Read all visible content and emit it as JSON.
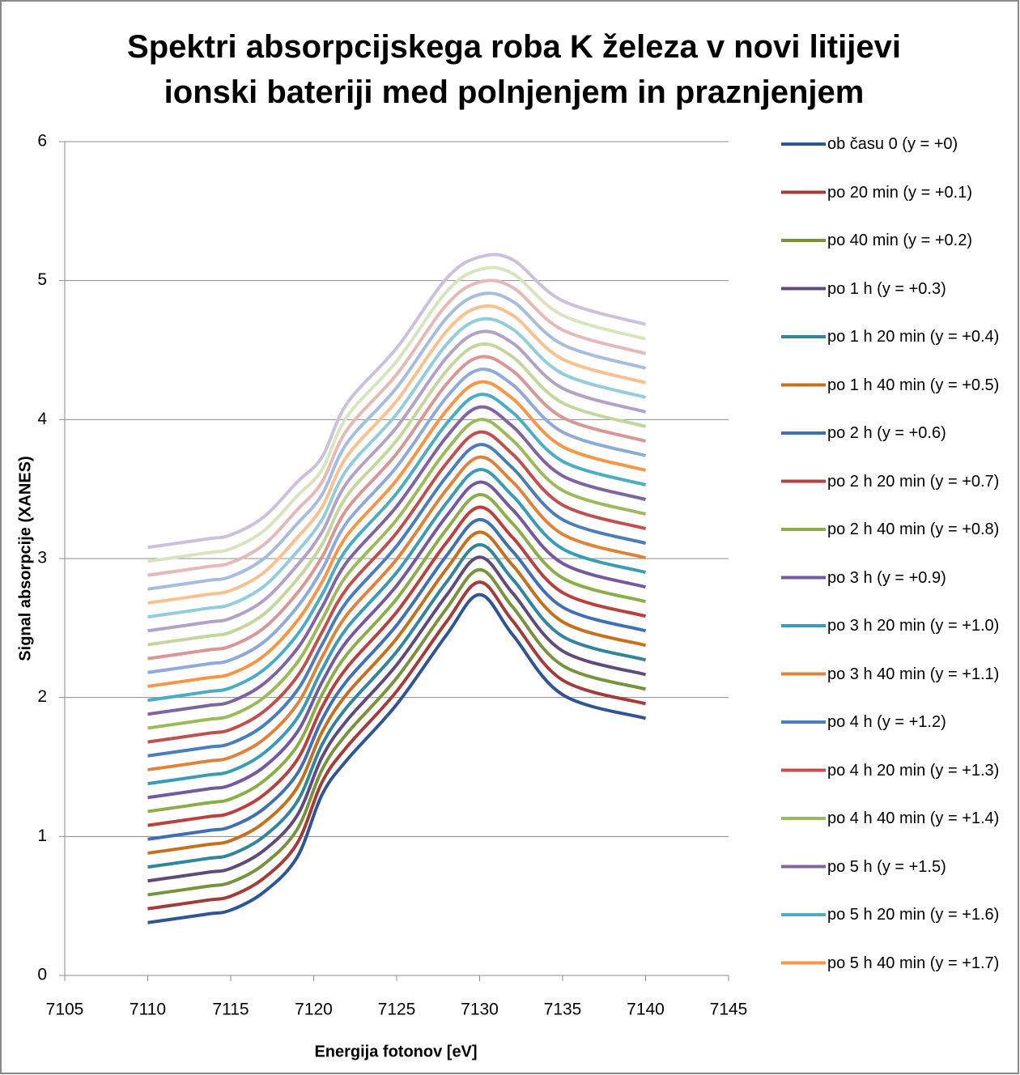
{
  "chart_data": {
    "type": "line",
    "title": "Spektri absorpcijskega roba K železa v novi litijevi ionski bateriji med polnjenjem in praznjenjem",
    "xlabel": "Energija fotonov [eV]",
    "ylabel": "Signal absorpcije (XANES)",
    "x": [
      7110,
      7113.5,
      7115,
      7117,
      7119,
      7120.5,
      7122,
      7125,
      7128,
      7130,
      7132,
      7135,
      7140
    ],
    "xlim": [
      7105,
      7145
    ],
    "xticks": [
      7105,
      7110,
      7115,
      7120,
      7125,
      7130,
      7135,
      7140,
      7145
    ],
    "ylim": [
      0,
      6
    ],
    "yticks": [
      0,
      1,
      2,
      3,
      4,
      5,
      6
    ],
    "grid": true,
    "legend": "right",
    "series": [
      {
        "name": "ob času 0  (y = +0)",
        "color": "#2f5597",
        "values": [
          0.38,
          0.44,
          0.47,
          0.6,
          0.85,
          1.3,
          1.55,
          1.95,
          2.45,
          2.74,
          2.45,
          2.02,
          1.85
        ]
      },
      {
        "name": "po 20 min  (y = +0.1)",
        "color": "#a33b38",
        "values": [
          0.48,
          0.54,
          0.57,
          0.7,
          0.95,
          1.39,
          1.645,
          2.045,
          2.545,
          2.83,
          2.55,
          2.125,
          1.955
        ]
      },
      {
        "name": "po 40 min  (y =  +0.2)",
        "color": "#77933c",
        "values": [
          0.58,
          0.64,
          0.67,
          0.8,
          1.05,
          1.48,
          1.74,
          2.14,
          2.64,
          2.92,
          2.65,
          2.23,
          2.06
        ]
      },
      {
        "name": "po 1 h  (y = +0.3)",
        "color": "#604a7b",
        "values": [
          0.68,
          0.74,
          0.77,
          0.9,
          1.15,
          1.57,
          1.835,
          2.235,
          2.735,
          3.01,
          2.75,
          2.335,
          2.165
        ]
      },
      {
        "name": "po 1 h 20 min  (y = +0.4)",
        "color": "#31859c",
        "values": [
          0.78,
          0.84,
          0.87,
          1.0,
          1.25,
          1.66,
          1.93,
          2.33,
          2.83,
          3.1,
          2.85,
          2.44,
          2.27
        ]
      },
      {
        "name": "po 1 h 40 min  (y = +0.5)",
        "color": "#c5701e",
        "values": [
          0.88,
          0.94,
          0.97,
          1.1,
          1.35,
          1.75,
          2.025,
          2.425,
          2.925,
          3.19,
          2.95,
          2.545,
          2.375
        ]
      },
      {
        "name": "po 2 h  (y = +0.6)",
        "color": "#3f70b3",
        "values": [
          0.98,
          1.04,
          1.07,
          1.2,
          1.45,
          1.84,
          2.12,
          2.52,
          3.02,
          3.28,
          3.05,
          2.65,
          2.48
        ]
      },
      {
        "name": "po 2 h 20 min  (y = +0.7)",
        "color": "#b8413e",
        "values": [
          1.08,
          1.14,
          1.17,
          1.3,
          1.55,
          1.93,
          2.215,
          2.615,
          3.115,
          3.37,
          3.15,
          2.755,
          2.585
        ]
      },
      {
        "name": "po 2 h 40 min  (y = +0.8)",
        "color": "#8aae48",
        "values": [
          1.18,
          1.24,
          1.27,
          1.4,
          1.65,
          2.02,
          2.31,
          2.71,
          3.21,
          3.46,
          3.25,
          2.86,
          2.69
        ]
      },
      {
        "name": "po 3 h  (y = +0.9)",
        "color": "#7458a0",
        "values": [
          1.28,
          1.34,
          1.37,
          1.5,
          1.75,
          2.11,
          2.405,
          2.805,
          3.305,
          3.55,
          3.35,
          2.965,
          2.795
        ]
      },
      {
        "name": "po 3 h 20 min  (y = +1.0)",
        "color": "#3a9bb6",
        "values": [
          1.38,
          1.44,
          1.47,
          1.6,
          1.85,
          2.2,
          2.5,
          2.9,
          3.4,
          3.64,
          3.45,
          3.07,
          2.9
        ]
      },
      {
        "name": "po 3 h 40 min  (y = +1.1)",
        "color": "#e0823a",
        "values": [
          1.48,
          1.54,
          1.57,
          1.7,
          1.95,
          2.29,
          2.595,
          2.995,
          3.495,
          3.73,
          3.55,
          3.175,
          3.005
        ]
      },
      {
        "name": "po 4 h  (y = +1.2)",
        "color": "#4a7ebb",
        "values": [
          1.58,
          1.64,
          1.67,
          1.8,
          2.05,
          2.38,
          2.69,
          3.09,
          3.59,
          3.82,
          3.65,
          3.28,
          3.11
        ]
      },
      {
        "name": "po 4 h 20 min  (y = +1.3)",
        "color": "#c0504d",
        "values": [
          1.68,
          1.74,
          1.77,
          1.9,
          2.15,
          2.47,
          2.785,
          3.185,
          3.685,
          3.91,
          3.75,
          3.385,
          3.215
        ]
      },
      {
        "name": "po 4 h 40 min  (y = +1.4)",
        "color": "#9bbb59",
        "values": [
          1.78,
          1.84,
          1.87,
          2.0,
          2.25,
          2.56,
          2.88,
          3.28,
          3.78,
          4.0,
          3.85,
          3.49,
          3.32
        ]
      },
      {
        "name": "po 5 h  (y = +1.5)",
        "color": "#8064a2",
        "values": [
          1.88,
          1.94,
          1.97,
          2.1,
          2.35,
          2.65,
          2.975,
          3.375,
          3.875,
          4.09,
          3.95,
          3.595,
          3.425
        ]
      },
      {
        "name": "po 5 h 20 min  (y = +1.6)",
        "color": "#4bacc6",
        "values": [
          1.98,
          2.04,
          2.07,
          2.2,
          2.45,
          2.74,
          3.07,
          3.47,
          3.97,
          4.18,
          4.05,
          3.7,
          3.53
        ]
      },
      {
        "name": "po 5 h 40 min  (y = +1.7)",
        "color": "#f79646",
        "values": [
          2.08,
          2.14,
          2.17,
          2.3,
          2.55,
          2.83,
          3.165,
          3.565,
          4.065,
          4.27,
          4.15,
          3.805,
          3.635
        ]
      },
      {
        "name": null,
        "color": "#8eaadb",
        "values": [
          2.18,
          2.24,
          2.27,
          2.4,
          2.65,
          2.92,
          3.26,
          3.66,
          4.16,
          4.36,
          4.25,
          3.91,
          3.74
        ]
      },
      {
        "name": null,
        "color": "#d99694",
        "values": [
          2.28,
          2.34,
          2.37,
          2.5,
          2.75,
          3.01,
          3.355,
          3.755,
          4.255,
          4.45,
          4.35,
          4.015,
          3.845
        ]
      },
      {
        "name": null,
        "color": "#c3d69b",
        "values": [
          2.38,
          2.44,
          2.47,
          2.6,
          2.85,
          3.1,
          3.45,
          3.85,
          4.35,
          4.54,
          4.45,
          4.12,
          3.95
        ]
      },
      {
        "name": null,
        "color": "#b3a2c7",
        "values": [
          2.48,
          2.54,
          2.57,
          2.7,
          2.95,
          3.19,
          3.545,
          3.945,
          4.445,
          4.63,
          4.55,
          4.225,
          4.055
        ]
      },
      {
        "name": null,
        "color": "#93cddd",
        "values": [
          2.58,
          2.64,
          2.67,
          2.8,
          3.05,
          3.28,
          3.64,
          4.04,
          4.54,
          4.72,
          4.65,
          4.33,
          4.16
        ]
      },
      {
        "name": null,
        "color": "#fac090",
        "values": [
          2.68,
          2.74,
          2.77,
          2.9,
          3.15,
          3.37,
          3.735,
          4.135,
          4.635,
          4.81,
          4.75,
          4.435,
          4.265
        ]
      },
      {
        "name": null,
        "color": "#a6bddf",
        "values": [
          2.78,
          2.84,
          2.87,
          3.0,
          3.25,
          3.46,
          3.83,
          4.23,
          4.73,
          4.9,
          4.85,
          4.54,
          4.37
        ]
      },
      {
        "name": null,
        "color": "#e6b9b8",
        "values": [
          2.88,
          2.94,
          2.97,
          3.1,
          3.35,
          3.55,
          3.925,
          4.325,
          4.825,
          4.99,
          4.95,
          4.645,
          4.475
        ]
      },
      {
        "name": null,
        "color": "#d7e4bd",
        "values": [
          2.98,
          3.04,
          3.07,
          3.2,
          3.45,
          3.64,
          4.02,
          4.42,
          4.92,
          5.08,
          5.05,
          4.75,
          4.58
        ]
      },
      {
        "name": null,
        "color": "#ccc1da",
        "values": [
          3.08,
          3.14,
          3.17,
          3.3,
          3.55,
          3.73,
          4.115,
          4.515,
          5.015,
          5.17,
          5.15,
          4.855,
          4.685
        ]
      }
    ]
  }
}
